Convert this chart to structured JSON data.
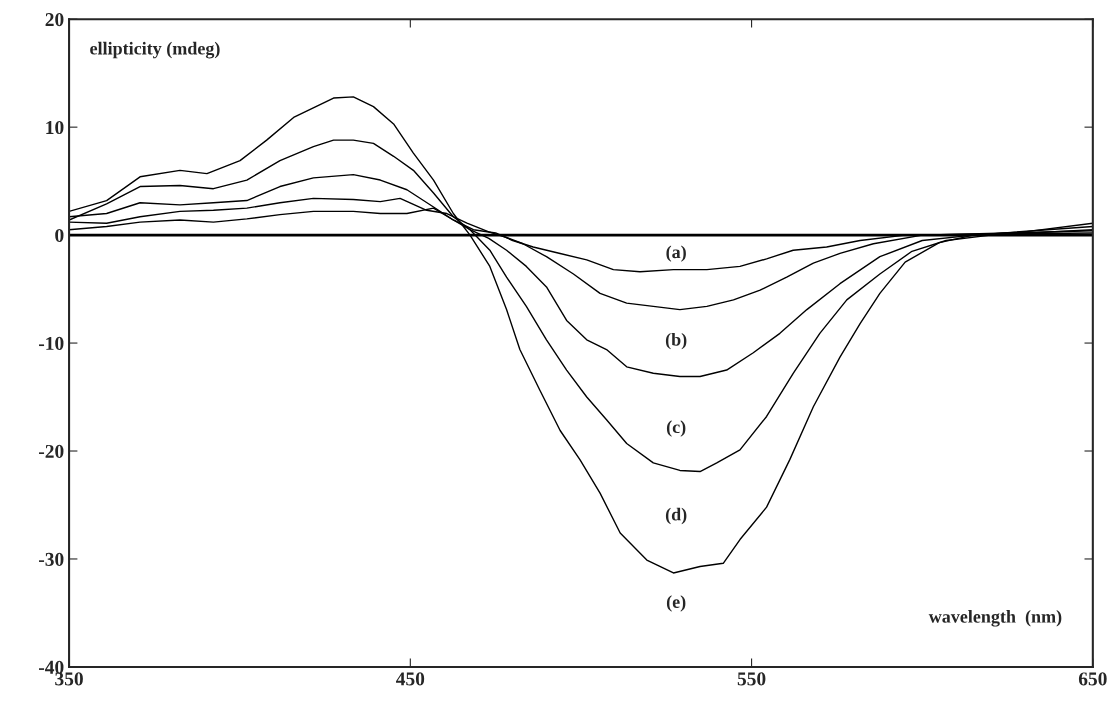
{
  "chart_data": {
    "type": "line",
    "xlabel": "wavelength  (nm)",
    "ylabel": "ellipticity (mdeg)",
    "xlim": [
      350,
      650
    ],
    "xticks": [
      350,
      450,
      550,
      650
    ],
    "ylim": [
      -40,
      20
    ],
    "yticks": [
      -40,
      -30,
      -20,
      -10,
      0,
      10,
      20
    ],
    "grid": false,
    "marker": "none",
    "line_style": "solid",
    "ref_lines": [
      {
        "axis": "y",
        "value": 0,
        "color": "#000000",
        "line_style": "solid"
      }
    ],
    "annotations": [
      "(a)",
      "(b)",
      "(c)",
      "(d)",
      "(e)"
    ],
    "series": [
      {
        "color": "#000000",
        "x": [
          350,
          361,
          370.8,
          382.5,
          392.3,
          402.1,
          411.8,
          421.6,
          433.3,
          441.2,
          449,
          456.8,
          462.6,
          468.5,
          475,
          480,
          486,
          493.9,
          501.7,
          509.5,
          517.3,
          527.1,
          536.9,
          546.6,
          554.4,
          562.2,
          572,
          581.8,
          595,
          620,
          650
        ],
        "values": [
          0.5,
          0.8,
          1.2,
          1.4,
          1.2,
          1.5,
          1.9,
          2.2,
          2.2,
          2.0,
          2.0,
          2.5,
          1.4,
          0.5,
          0.2,
          -0.5,
          -1.1,
          -1.7,
          -2.3,
          -3.2,
          -3.4,
          -3.2,
          -3.2,
          -2.9,
          -2.2,
          -1.4,
          -1.1,
          -0.5,
          0,
          0.1,
          0.2
        ]
      },
      {
        "color": "#000000",
        "x": [
          350,
          361,
          370.8,
          382.5,
          392.3,
          402.1,
          411.8,
          421.6,
          433.3,
          441.2,
          447,
          454.8,
          460.7,
          466.6,
          473,
          478,
          483,
          489.9,
          497.8,
          505.6,
          513.4,
          521.2,
          529,
          536.9,
          544.7,
          552.5,
          560.3,
          568.1,
          575.9,
          585.7,
          600,
          625,
          650
        ],
        "values": [
          1.2,
          1.1,
          1.7,
          2.2,
          2.3,
          2.5,
          3.0,
          3.4,
          3.3,
          3.1,
          3.4,
          2.3,
          2.0,
          1.1,
          0.3,
          -0.2,
          -0.8,
          -2.0,
          -3.6,
          -5.4,
          -6.3,
          -6.6,
          -6.9,
          -6.6,
          -6.0,
          -5.1,
          -3.9,
          -2.6,
          -1.7,
          -0.8,
          0,
          0.2,
          0.4
        ]
      },
      {
        "color": "#000000",
        "x": [
          350,
          361,
          370.8,
          382.5,
          392.3,
          402.1,
          411.8,
          421.6,
          433.3,
          441.2,
          449,
          456.8,
          462.6,
          467.5,
          473,
          478.2,
          484,
          489.9,
          495.8,
          501.7,
          507.5,
          513.4,
          521.2,
          529,
          534.9,
          542.7,
          550.5,
          558.3,
          566.2,
          575.9,
          587.6,
          600,
          615,
          650
        ],
        "values": [
          1.7,
          2.0,
          3.0,
          2.8,
          3.0,
          3.2,
          4.5,
          5.3,
          5.6,
          5.1,
          4.2,
          2.6,
          1.4,
          0.5,
          -0.3,
          -1.4,
          -2.9,
          -4.8,
          -7.9,
          -9.7,
          -10.6,
          -12.2,
          -12.8,
          -13.1,
          -13.1,
          -12.5,
          -10.9,
          -9.1,
          -6.9,
          -4.5,
          -2.0,
          -0.5,
          0,
          0.8
        ]
      },
      {
        "color": "#000000",
        "x": [
          350,
          361,
          370.8,
          382.5,
          392.3,
          402.1,
          411.8,
          421.6,
          427.5,
          433.3,
          439.2,
          445.1,
          450.9,
          456.8,
          462.6,
          467.5,
          473.3,
          478.2,
          484,
          489.9,
          495.8,
          501.7,
          507.5,
          513.4,
          521.2,
          529,
          534.9,
          539.8,
          546.6,
          554.4,
          562.2,
          570,
          577.9,
          587.6,
          597,
          607,
          620,
          650
        ],
        "values": [
          1.4,
          2.9,
          4.5,
          4.6,
          4.3,
          5.1,
          6.9,
          8.2,
          8.8,
          8.8,
          8.5,
          7.3,
          6.0,
          3.9,
          1.7,
          0.5,
          -1.4,
          -3.9,
          -6.6,
          -9.7,
          -12.5,
          -15.0,
          -17.1,
          -19.3,
          -21.1,
          -21.8,
          -21.9,
          -21.1,
          -19.9,
          -16.8,
          -12.8,
          -9.1,
          -6.0,
          -3.6,
          -1.5,
          -0.5,
          0,
          0.5
        ]
      },
      {
        "color": "#000000",
        "x": [
          350,
          361,
          370.8,
          382.5,
          390.4,
          400.1,
          407.9,
          415.8,
          427.5,
          433.3,
          439.2,
          445.1,
          450.9,
          456.8,
          462.6,
          467.5,
          473.3,
          478.2,
          482.1,
          488,
          493.9,
          499.7,
          505.6,
          511.5,
          519.3,
          527.1,
          534.9,
          541.7,
          546.6,
          554.4,
          561.2,
          568.1,
          575.9,
          581.8,
          587.6,
          595,
          605,
          615,
          630,
          650
        ],
        "values": [
          2.2,
          3.2,
          5.4,
          6.0,
          5.7,
          6.9,
          8.8,
          10.9,
          12.7,
          12.8,
          11.9,
          10.3,
          7.6,
          5.1,
          2.0,
          0,
          -2.9,
          -6.9,
          -10.6,
          -14.4,
          -18.1,
          -20.8,
          -23.9,
          -27.6,
          -30.1,
          -31.3,
          -30.7,
          -30.4,
          -28.2,
          -25.2,
          -20.8,
          -15.9,
          -11.3,
          -8.2,
          -5.4,
          -2.5,
          -0.7,
          0,
          0.3,
          1.1
        ]
      }
    ]
  }
}
